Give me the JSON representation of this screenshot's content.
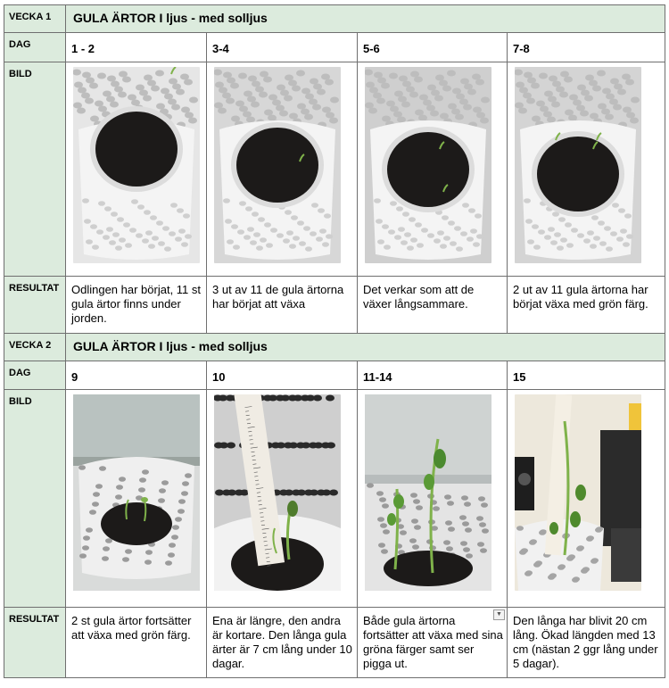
{
  "labels": {
    "dag": "DAG",
    "bild": "BILD",
    "resultat": "RESULTAT"
  },
  "weeks": [
    {
      "label": "VECKA 1",
      "title": "GULA ÄRTOR I ljus - med solljus",
      "days": [
        "1 - 2",
        "3-4",
        "5-6",
        "7-8"
      ],
      "results": [
        "Odlingen har börjat, 11 st gula ärtor finns under jorden.",
        "3 ut av 11 de gula ärtorna har börjat att växa",
        "Det verkar som att de växer långsammare.",
        "2 ut av 11 gula ärtorna har börjat växa med grön färg."
      ]
    },
    {
      "label": "VECKA 2",
      "title": "GULA ÄRTOR I ljus - med solljus",
      "days": [
        "9",
        "10",
        "11-14",
        "15"
      ],
      "results": [
        "2 st gula ärtor fortsätter att växa med grön färg.",
        "Ena är längre, den andra är kortare. Den långa gula ärter är 7 cm lång under 10 dagar.",
        "Både gula ärtorna fortsätter att växa med sina gröna färger samt ser pigga ut.",
        "Den långa har blivit 20 cm lång. Ökad längden med 13 cm (nästan 2 ggr lång under 5 dagar)."
      ]
    }
  ],
  "photo_icons": [
    "plant-photo-day-1-2",
    "plant-photo-day-3-4",
    "plant-photo-day-5-6",
    "plant-photo-day-7-8",
    "plant-photo-day-9",
    "plant-photo-day-10",
    "plant-photo-day-11-14",
    "plant-photo-day-15"
  ],
  "colors": {
    "header_bg": "#dcebdd",
    "border": "#6f6f6f",
    "soil": "#1c1a19",
    "pot": "#e9e9e9",
    "sprout": "#7fb24a"
  }
}
